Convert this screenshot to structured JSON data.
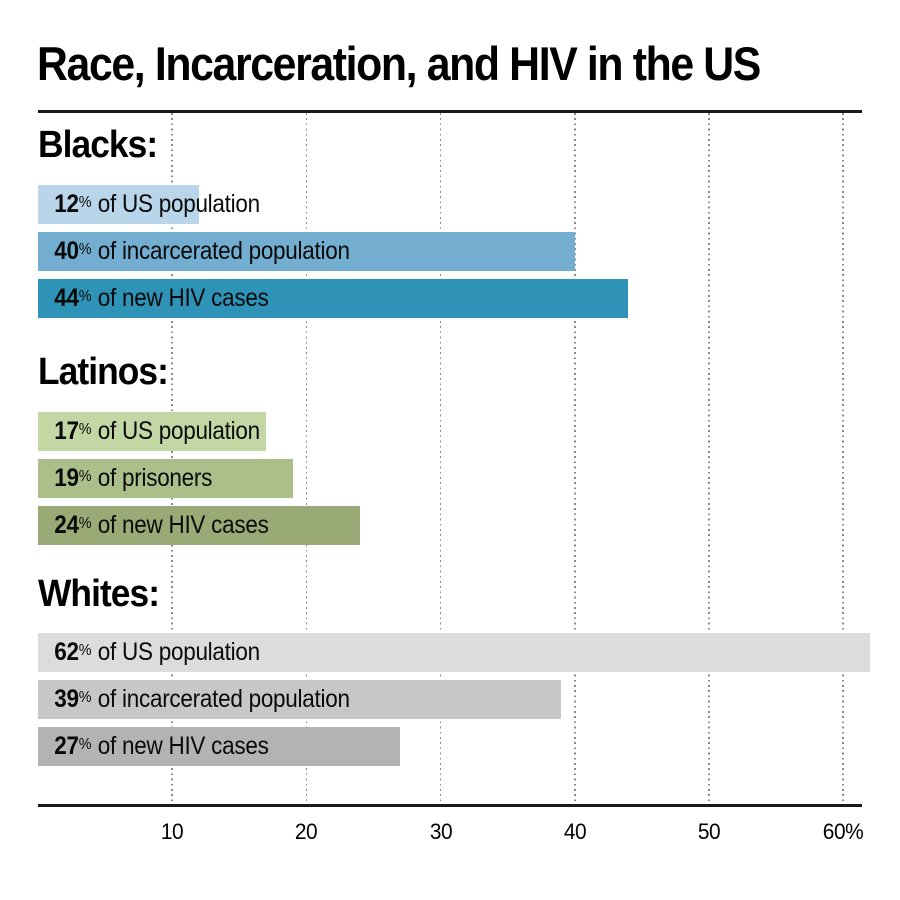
{
  "title": "Race, Incarceration, and HIV in the US",
  "chart_data": {
    "type": "bar",
    "orientation": "horizontal",
    "title": "Race, Incarceration, and HIV in the US",
    "unit": "%",
    "xlim": [
      0,
      62
    ],
    "grid": "dotted-vertical",
    "axis_ticks": [
      10,
      20,
      30,
      40,
      50,
      60
    ],
    "axis_tick_labels": [
      "10",
      "20",
      "30",
      "40",
      "50",
      "60%"
    ],
    "groups": [
      {
        "label": "Blacks:",
        "bars": [
          {
            "value": 12,
            "unit": "%",
            "label": "of US population",
            "color": "#b9d5e9"
          },
          {
            "value": 40,
            "unit": "%",
            "label": "of incarcerated population",
            "color": "#73aed1"
          },
          {
            "value": 44,
            "unit": "%",
            "label": "of new HIV cases",
            "color": "#2e93b6"
          }
        ]
      },
      {
        "label": "Latinos:",
        "bars": [
          {
            "value": 17,
            "unit": "%",
            "label": "of US population",
            "color": "#c3d7a4"
          },
          {
            "value": 19,
            "unit": "%",
            "label": "of prisoners",
            "color": "#aabf89"
          },
          {
            "value": 24,
            "unit": "%",
            "label": "of new HIV cases",
            "color": "#9aaa76"
          }
        ]
      },
      {
        "label": "Whites:",
        "bars": [
          {
            "value": 62,
            "unit": "%",
            "label": "of US population",
            "color": "#dcdcdc"
          },
          {
            "value": 39,
            "unit": "%",
            "label": "of incarcerated population",
            "color": "#c7c7c7"
          },
          {
            "value": 27,
            "unit": "%",
            "label": "of new HIV cases",
            "color": "#b3b3b3"
          }
        ]
      }
    ]
  }
}
